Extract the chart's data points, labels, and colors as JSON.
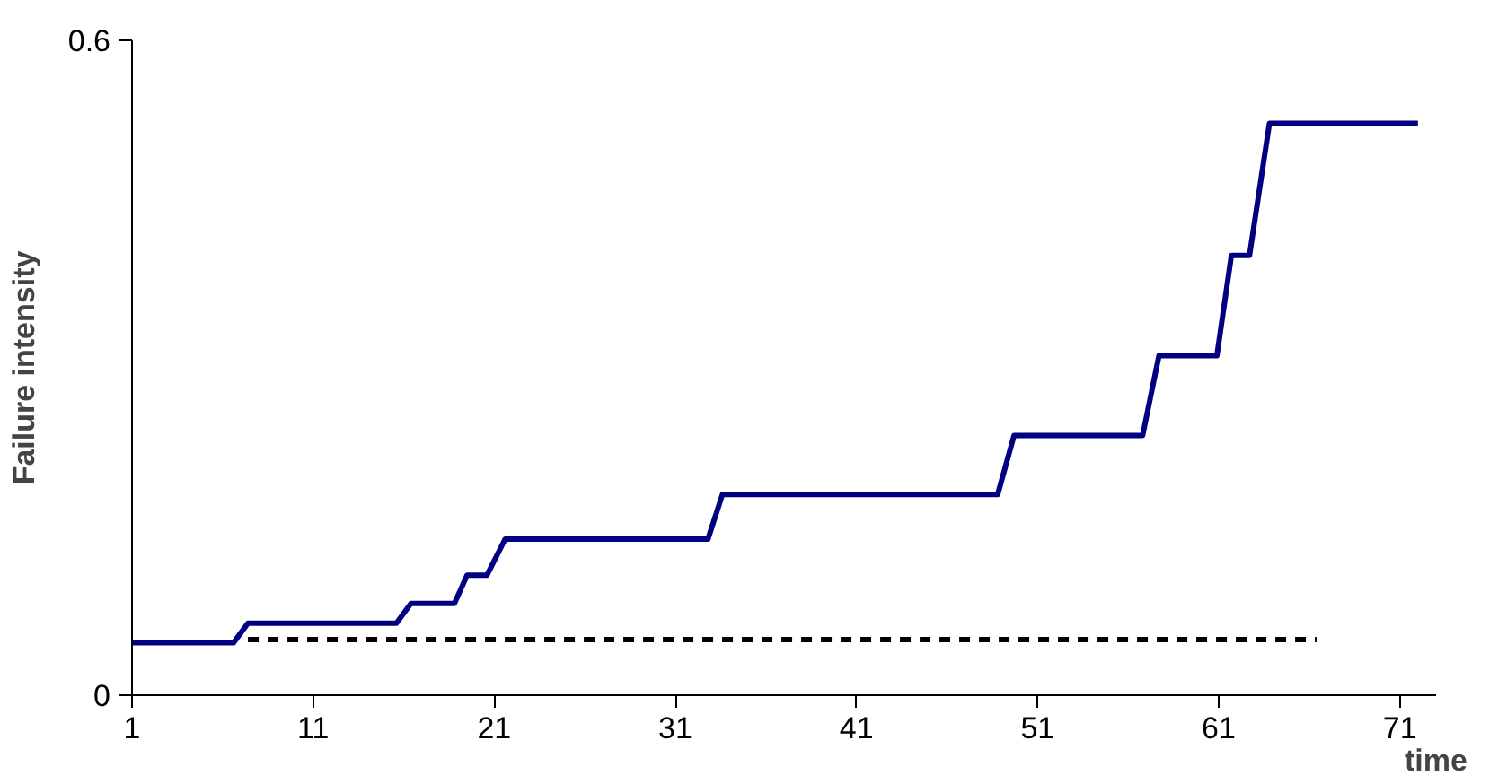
{
  "chart_data": {
    "type": "line",
    "xlabel": "time",
    "ylabel": "Failure intensity",
    "xlim": [
      1,
      73
    ],
    "ylim": [
      0,
      0.6
    ],
    "xticks": [
      1,
      11,
      21,
      31,
      41,
      51,
      61,
      71
    ],
    "yticks": [
      0,
      0.6
    ],
    "grid": false,
    "series": [
      {
        "color": "#000080",
        "line_style": "solid",
        "x": [
          1,
          6.6,
          7.4,
          15.6,
          16.4,
          18.8,
          19.5,
          20.6,
          21.6,
          32.8,
          33.6,
          48.8,
          49.7,
          56.8,
          57.7,
          60.9,
          61.7,
          62.7,
          63.8,
          72.0
        ],
        "values": [
          0.048,
          0.048,
          0.066,
          0.066,
          0.084,
          0.084,
          0.11,
          0.11,
          0.143,
          0.143,
          0.184,
          0.184,
          0.238,
          0.238,
          0.311,
          0.311,
          0.403,
          0.403,
          0.524,
          0.524
        ]
      },
      {
        "color": "#000000",
        "line_style": "dashed",
        "x": [
          7.4,
          66.4
        ],
        "values": [
          0.051,
          0.051
        ]
      }
    ]
  }
}
